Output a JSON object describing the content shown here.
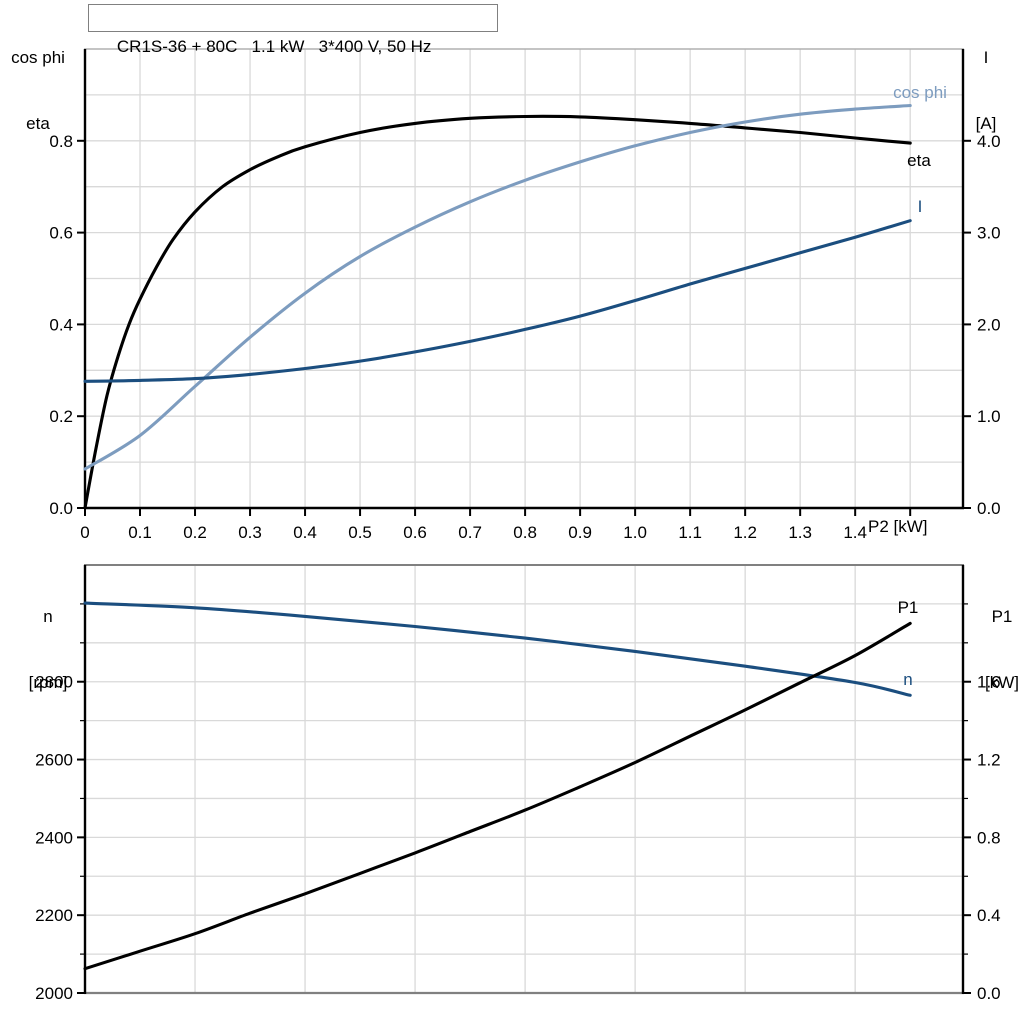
{
  "title": "CR1S-36 + 80C   1.1 kW   3*400 V, 50 Hz",
  "labels": {
    "top_left_axis_line1": "cos phi",
    "top_left_axis_line2": "eta",
    "top_right_axis_line1": "I",
    "top_right_axis_line2": "[A]",
    "bottom_left_axis_line1": "n",
    "bottom_left_axis_line2": "[rpm]",
    "bottom_right_axis_line1": "P1",
    "bottom_right_axis_line2": "[kW]",
    "x_axis_unit": "P2 [kW]",
    "curve_cos_phi": "cos phi",
    "curve_eta": "eta",
    "curve_current": "I",
    "curve_p1": "P1",
    "curve_n": "n"
  },
  "colors": {
    "black": "#000000",
    "light_blue": "#7d9cbf",
    "dark_blue": "#1b4e7f",
    "grid": "#d9d9d9",
    "frame_gray": "#808080",
    "frame_light": "#b0b0b0"
  },
  "chart_data": [
    {
      "id": "motor-electrical-curves",
      "type": "line",
      "title": "CR1S-36 + 80C   1.1 kW   3*400 V, 50 Hz",
      "xlabel": "P2 [kW]",
      "x_axis": {
        "min": 0,
        "max": 1.596,
        "tick_values": [
          0,
          0.1,
          0.2,
          0.3,
          0.4,
          0.5,
          0.6,
          0.7,
          0.8,
          0.9,
          1.0,
          1.1,
          1.2,
          1.3,
          1.4,
          1.5
        ],
        "tick_labels": [
          "0",
          "0.1",
          "0.2",
          "0.3",
          "0.4",
          "0.5",
          "0.6",
          "0.7",
          "0.8",
          "0.9",
          "1.0",
          "1.1",
          "1.2",
          "1.3",
          "1.4",
          ""
        ],
        "grid_values": [
          0.1,
          0.2,
          0.3,
          0.4,
          0.5,
          0.6,
          0.7,
          0.8,
          0.9,
          1.0,
          1.1,
          1.2,
          1.3,
          1.4,
          1.5
        ]
      },
      "y_left_axis": {
        "label": "cos phi / eta",
        "min": 0,
        "max": 1.0,
        "tick_values": [
          0,
          0.2,
          0.4,
          0.6,
          0.8
        ],
        "tick_labels": [
          "0.0",
          "0.2",
          "0.4",
          "0.6",
          "0.8"
        ],
        "minor_tick_values": [],
        "grid_values": [
          0.1,
          0.2,
          0.3,
          0.4,
          0.5,
          0.6,
          0.7,
          0.8,
          0.9
        ]
      },
      "y_right_axis": {
        "label": "I [A]",
        "min": 0,
        "max": 5.0,
        "tick_values": [
          0,
          1,
          2,
          3,
          4
        ],
        "tick_labels": [
          "0.0",
          "1.0",
          "2.0",
          "3.0",
          "4.0"
        ],
        "minor_tick_values": []
      },
      "legend_position": "inline-labels",
      "grid": true,
      "series": [
        {
          "key": "eta",
          "name": "eta",
          "axis": "left",
          "color_key": "black",
          "points": [
            [
              0,
              0
            ],
            [
              0.02,
              0.13
            ],
            [
              0.04,
              0.245
            ],
            [
              0.06,
              0.33
            ],
            [
              0.08,
              0.4
            ],
            [
              0.1,
              0.455
            ],
            [
              0.13,
              0.525
            ],
            [
              0.16,
              0.585
            ],
            [
              0.2,
              0.645
            ],
            [
              0.25,
              0.7
            ],
            [
              0.3,
              0.737
            ],
            [
              0.35,
              0.765
            ],
            [
              0.4,
              0.787
            ],
            [
              0.5,
              0.818
            ],
            [
              0.6,
              0.838
            ],
            [
              0.7,
              0.849
            ],
            [
              0.8,
              0.853
            ],
            [
              0.9,
              0.852
            ],
            [
              1.0,
              0.846
            ],
            [
              1.1,
              0.838
            ],
            [
              1.2,
              0.828
            ],
            [
              1.3,
              0.818
            ],
            [
              1.4,
              0.806
            ],
            [
              1.5,
              0.795
            ]
          ]
        },
        {
          "key": "cos-phi",
          "name": "cos phi",
          "axis": "left",
          "color_key": "light_blue",
          "points": [
            [
              0,
              0.085
            ],
            [
              0.1,
              0.158
            ],
            [
              0.2,
              0.265
            ],
            [
              0.3,
              0.372
            ],
            [
              0.4,
              0.468
            ],
            [
              0.5,
              0.548
            ],
            [
              0.6,
              0.612
            ],
            [
              0.7,
              0.667
            ],
            [
              0.8,
              0.714
            ],
            [
              0.9,
              0.754
            ],
            [
              1.0,
              0.789
            ],
            [
              1.1,
              0.818
            ],
            [
              1.2,
              0.841
            ],
            [
              1.3,
              0.858
            ],
            [
              1.4,
              0.869
            ],
            [
              1.5,
              0.877
            ]
          ]
        },
        {
          "key": "current",
          "name": "I",
          "axis": "right",
          "color_key": "dark_blue",
          "points": [
            [
              0,
              1.38
            ],
            [
              0.1,
              1.39
            ],
            [
              0.2,
              1.41
            ],
            [
              0.3,
              1.455
            ],
            [
              0.4,
              1.52
            ],
            [
              0.5,
              1.6
            ],
            [
              0.6,
              1.7
            ],
            [
              0.7,
              1.815
            ],
            [
              0.8,
              1.945
            ],
            [
              0.9,
              2.09
            ],
            [
              1.0,
              2.26
            ],
            [
              1.1,
              2.44
            ],
            [
              1.2,
              2.61
            ],
            [
              1.3,
              2.78
            ],
            [
              1.4,
              2.95
            ],
            [
              1.5,
              3.13
            ]
          ]
        }
      ]
    },
    {
      "id": "motor-speed-power-curves",
      "type": "line",
      "title": "",
      "xlabel": "P2 [kW]",
      "x_axis": {
        "min": 0,
        "max": 1.596,
        "tick_values": [],
        "tick_labels": [],
        "grid_values": [
          0.2,
          0.4,
          0.6,
          0.8,
          1.0,
          1.2,
          1.4
        ]
      },
      "y_left_axis": {
        "label": "n [rpm]",
        "min": 2000,
        "max": 3100,
        "tick_values": [
          2000,
          2200,
          2400,
          2600,
          2800
        ],
        "tick_labels": [
          "2000",
          "2200",
          "2400",
          "2600",
          "2800"
        ],
        "minor_tick_values": [
          2100,
          2300,
          2500,
          2700,
          2900,
          3000
        ],
        "grid_values": [
          2100,
          2200,
          2300,
          2400,
          2500,
          2600,
          2700,
          2800,
          2900,
          3000
        ]
      },
      "y_right_axis": {
        "label": "P1 [kW]",
        "min": 0,
        "max": 2.2,
        "tick_values": [
          0,
          0.4,
          0.8,
          1.2,
          1.6
        ],
        "tick_labels": [
          "0.0",
          "0.4",
          "0.8",
          "1.2",
          "1.6"
        ],
        "minor_tick_values": [
          0.2,
          0.6,
          1.0,
          1.4,
          1.8,
          2.0
        ]
      },
      "legend_position": "inline-labels",
      "grid": true,
      "series": [
        {
          "key": "speed",
          "name": "n",
          "axis": "left",
          "color_key": "dark_blue",
          "points": [
            [
              0,
              3002
            ],
            [
              0.2,
              2990
            ],
            [
              0.4,
              2968
            ],
            [
              0.6,
              2942
            ],
            [
              0.8,
              2912
            ],
            [
              1.0,
              2878
            ],
            [
              1.2,
              2840
            ],
            [
              1.4,
              2798
            ],
            [
              1.5,
              2765
            ]
          ]
        },
        {
          "key": "p1",
          "name": "P1",
          "axis": "right",
          "color_key": "black",
          "points": [
            [
              0,
              0.125
            ],
            [
              0.1,
              0.215
            ],
            [
              0.2,
              0.305
            ],
            [
              0.3,
              0.41
            ],
            [
              0.4,
              0.51
            ],
            [
              0.5,
              0.615
            ],
            [
              0.6,
              0.72
            ],
            [
              0.7,
              0.83
            ],
            [
              0.8,
              0.94
            ],
            [
              0.9,
              1.06
            ],
            [
              1.0,
              1.185
            ],
            [
              1.1,
              1.32
            ],
            [
              1.2,
              1.455
            ],
            [
              1.3,
              1.595
            ],
            [
              1.4,
              1.735
            ],
            [
              1.5,
              1.9
            ]
          ]
        }
      ]
    }
  ]
}
